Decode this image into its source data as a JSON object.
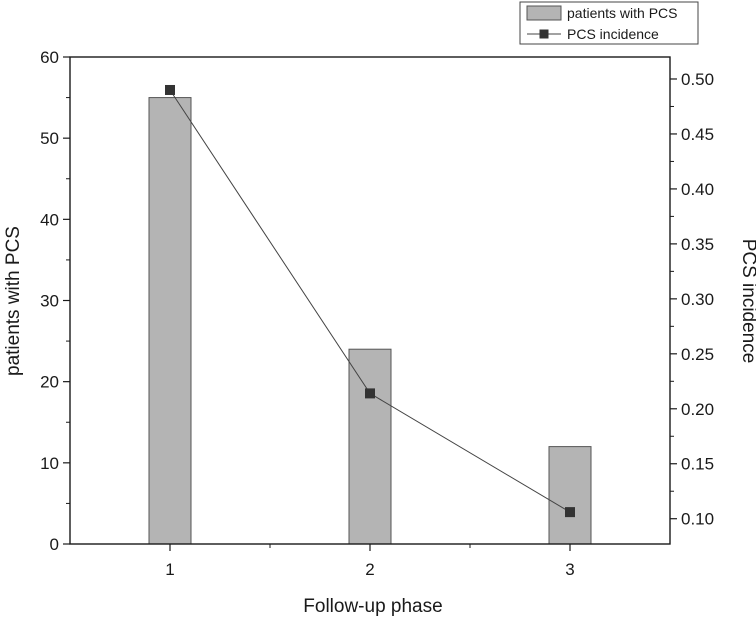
{
  "chart_data": {
    "type": "bar",
    "xlabel": "Follow-up phase",
    "ylabel": "patients with PCS",
    "y2label": "PCS incidence",
    "categories": [
      "1",
      "2",
      "3"
    ],
    "ylim": [
      0,
      60
    ],
    "y2lim": [
      0.077,
      0.52
    ],
    "yticks": [
      0,
      10,
      20,
      30,
      40,
      50,
      60
    ],
    "y2ticks": [
      0.1,
      0.15,
      0.2,
      0.25,
      0.3,
      0.35,
      0.4,
      0.45,
      0.5
    ],
    "series": [
      {
        "name": "patients with PCS",
        "type": "bar",
        "axis": "left",
        "values": [
          55,
          24,
          12
        ]
      },
      {
        "name": "PCS incidence",
        "type": "line",
        "axis": "right",
        "values": [
          0.49,
          0.214,
          0.106
        ]
      }
    ],
    "legend": {
      "position": "top-right",
      "bar_label": "patients with PCS",
      "line_label": "PCS incidence"
    },
    "grid": false,
    "colors": {
      "bar_fill": "#b4b4b4",
      "bar_stroke": "#555555",
      "line": "#444444",
      "marker": "#333333",
      "axis": "#1a1a1a"
    }
  }
}
